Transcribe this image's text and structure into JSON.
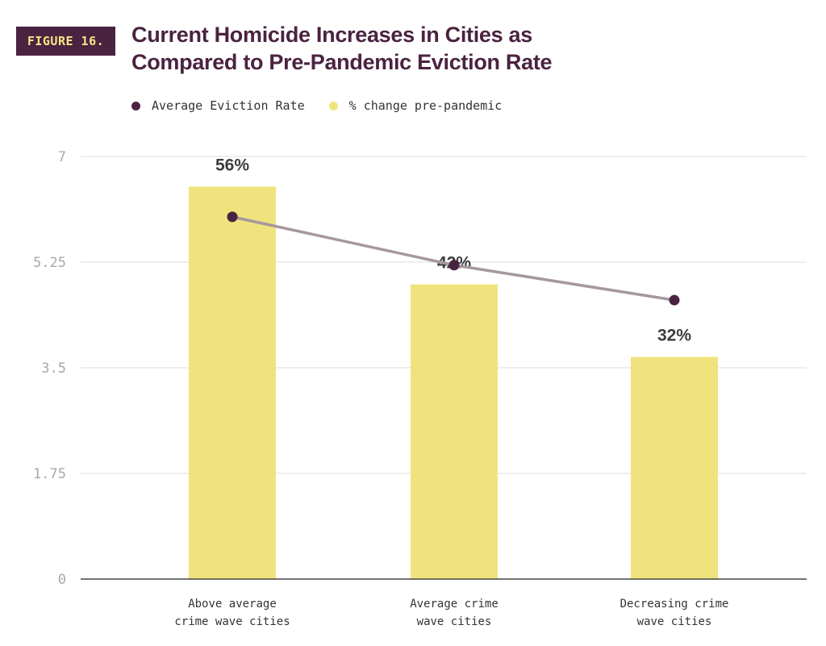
{
  "figure_label": "FIGURE 16.",
  "title_line1": "Current Homicide Increases in Cities as",
  "title_line2": "Compared to Pre-Pandemic Eviction Rate",
  "legend": [
    {
      "label": "Average Eviction Rate",
      "color": "#4a2340"
    },
    {
      "label": "% change pre-pandemic",
      "color": "#f0e37e"
    }
  ],
  "chart_data": {
    "type": "bar",
    "title": "Current Homicide Increases in Cities as Compared to Pre-Pandemic Eviction Rate",
    "categories": [
      [
        "Above average",
        "crime wave cities"
      ],
      [
        "Average crime",
        "wave cities"
      ],
      [
        "Decreasing crime",
        "wave cities"
      ]
    ],
    "ylim": [
      0,
      7
    ],
    "yticks": [
      0,
      1.75,
      3.5,
      5.25,
      7
    ],
    "ytick_labels": [
      "0",
      "1.75",
      "3.5",
      "5.25",
      "7"
    ],
    "grid": true,
    "series": [
      {
        "name": "% change pre-pandemic",
        "kind": "bar",
        "color": "#f0e37e",
        "values": [
          6.5,
          4.88,
          3.68
        ],
        "data_labels": [
          "56%",
          "42%",
          "32%"
        ]
      },
      {
        "name": "Average Eviction Rate",
        "kind": "line",
        "color": "#4a2340",
        "line_color": "#a7979f",
        "values": [
          6.0,
          5.2,
          4.62
        ]
      }
    ]
  }
}
